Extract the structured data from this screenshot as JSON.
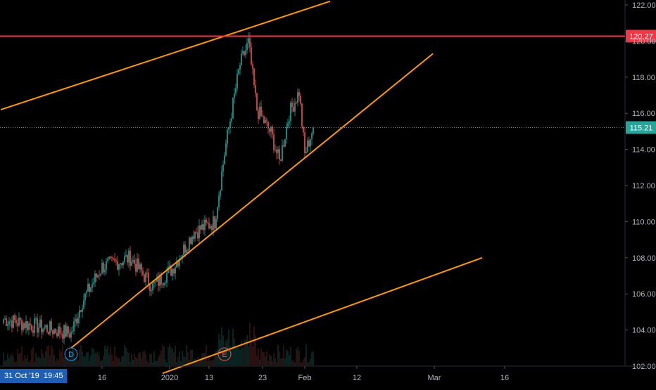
{
  "chart_data": {
    "type": "candlestick",
    "title": "",
    "x_axis": {
      "tick_labels": [
        "16",
        "2020",
        "13",
        "23",
        "Feb",
        "12",
        "Mar",
        "16"
      ]
    },
    "y_axis": {
      "tick_labels": [
        "102.00",
        "104.00",
        "106.00",
        "108.00",
        "110.00",
        "112.00",
        "114.00",
        "116.00",
        "118.00",
        "120.00",
        "122.00"
      ],
      "range": [
        101.6,
        122.3
      ]
    },
    "price_lines": [
      {
        "name": "resistance-level",
        "value": 120.27,
        "label": "120.27",
        "color": "#f23645"
      },
      {
        "name": "last-price",
        "value": 115.21,
        "label": "115.21",
        "color": "#26a69a"
      }
    ],
    "trend_lines": [
      {
        "name": "upper-channel-line",
        "color": "#ff9800",
        "from": {
          "bar": -2,
          "y": 116.2
        },
        "to": {
          "bar": 232,
          "y": 122.2
        }
      },
      {
        "name": "middle-trend-line",
        "color": "#ff9800",
        "from": {
          "bar": 48,
          "y": 103.0
        },
        "to": {
          "bar": 305,
          "y": 119.3
        }
      },
      {
        "name": "lower-channel-line",
        "color": "#ff9800",
        "from": {
          "bar": 113,
          "y": 101.6
        },
        "to": {
          "bar": 340,
          "y": 108.0
        }
      }
    ],
    "markers": [
      {
        "label": "D",
        "bar": 48,
        "color": "#2196f3"
      },
      {
        "label": "E",
        "bar": 157,
        "color": "#ef5350"
      }
    ],
    "key_points": [
      {
        "bar": 0,
        "close": 104.6
      },
      {
        "bar": 48,
        "close": 103.8
      },
      {
        "bar": 56,
        "close": 105.6
      },
      {
        "bar": 70,
        "close": 107.5
      },
      {
        "bar": 90,
        "close": 108.0
      },
      {
        "bar": 106,
        "close": 106.4
      },
      {
        "bar": 120,
        "close": 107.4
      },
      {
        "bar": 135,
        "close": 109.4
      },
      {
        "bar": 150,
        "close": 110.0
      },
      {
        "bar": 158,
        "close": 114.3
      },
      {
        "bar": 168,
        "close": 118.7
      },
      {
        "bar": 174,
        "close": 119.9
      },
      {
        "bar": 180,
        "close": 116.2
      },
      {
        "bar": 190,
        "close": 114.9
      },
      {
        "bar": 196,
        "close": 113.3
      },
      {
        "bar": 203,
        "close": 116.0
      },
      {
        "bar": 210,
        "close": 117.2
      },
      {
        "bar": 214,
        "close": 113.7
      },
      {
        "bar": 220,
        "close": 115.2
      }
    ],
    "bar_count": 221,
    "colors": {
      "up": "#26a69a",
      "down": "#ef5350",
      "background": "#000000",
      "grid": "#1e222d"
    }
  },
  "cursor_time_label": "31 Oct '19  19:45"
}
